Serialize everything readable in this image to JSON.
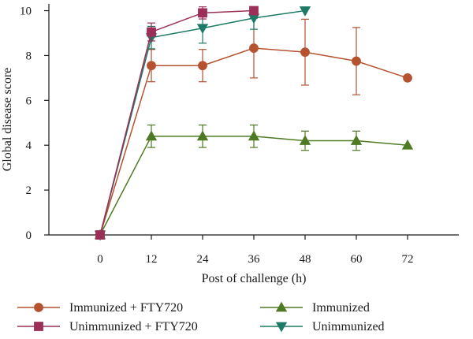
{
  "chart_data": {
    "type": "line",
    "title": "",
    "xlabel": "Post of challenge (h)",
    "ylabel": "Global disease score",
    "x_ticks": [
      "0",
      "12",
      "24",
      "36",
      "48",
      "60",
      "72"
    ],
    "y_ticks": [
      "0",
      "2",
      "4",
      "6",
      "8",
      "10"
    ],
    "xlim": [
      -12,
      84
    ],
    "ylim": [
      0,
      10.3
    ],
    "grid": false,
    "legend_placement": "bottom",
    "series": [
      {
        "name": "Immunized + FTY720",
        "marker": "circle",
        "color": "#b5522f",
        "x": [
          0,
          12,
          24,
          36,
          48,
          60,
          72
        ],
        "y": [
          0,
          7.55,
          7.55,
          8.33,
          8.15,
          7.75,
          7.0
        ],
        "error": [
          0,
          0.72,
          0.72,
          1.33,
          1.47,
          1.5,
          0
        ]
      },
      {
        "name": "Unimmunized + FTY720",
        "marker": "square",
        "color": "#9b2f58",
        "x": [
          0,
          12,
          24,
          36
        ],
        "y": [
          0,
          9.05,
          9.9,
          10.0
        ],
        "error": [
          0,
          0.4,
          0.27,
          0.1
        ]
      },
      {
        "name": "Immunized",
        "marker": "triangle-up",
        "color": "#4e7a23",
        "x": [
          0,
          12,
          24,
          36,
          48,
          60,
          72
        ],
        "y": [
          0,
          4.4,
          4.4,
          4.4,
          4.2,
          4.2,
          4.0
        ],
        "error": [
          0,
          0.5,
          0.5,
          0.5,
          0.43,
          0.43,
          0
        ]
      },
      {
        "name": "Unimmunized",
        "marker": "triangle-down",
        "color": "#1c7a66",
        "x": [
          0,
          12,
          24,
          36,
          48
        ],
        "y": [
          0,
          8.8,
          9.22,
          9.67,
          10.0
        ],
        "error": [
          0,
          0.5,
          0.67,
          0.5,
          0
        ]
      }
    ]
  }
}
